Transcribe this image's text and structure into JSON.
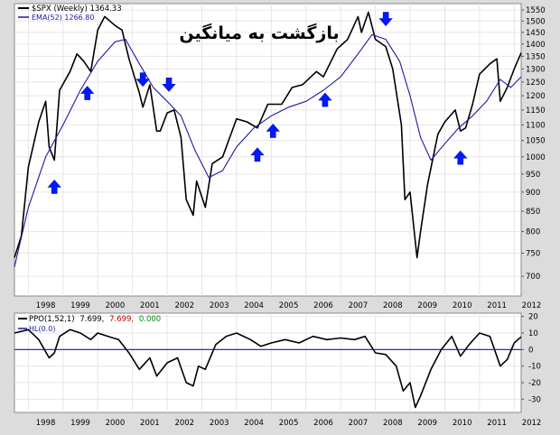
{
  "chart_data": [
    {
      "type": "line",
      "legend": [
        {
          "label": "$SPX (Weekly) 1364.33",
          "color": "#000000"
        },
        {
          "label": "EMA(52) 1266.80",
          "color": "#1a1aa0"
        }
      ],
      "annotation": "بازگشت به میانگین",
      "y_scale": "log",
      "ylim": [
        660,
        1580
      ],
      "y_ticks": [
        "700",
        "750",
        "800",
        "850",
        "900",
        "950",
        "1000",
        "1050",
        "1100",
        "1150",
        "1200",
        "1250",
        "1300",
        "1350",
        "1400",
        "1450",
        "1500",
        "1550"
      ],
      "x_ticks": [
        "1998",
        "1999",
        "2000",
        "2001",
        "2002",
        "2003",
        "2004",
        "2005",
        "2006",
        "2007",
        "2008",
        "2009",
        "2010",
        "2011",
        "2012"
      ],
      "xlim": [
        1997.6,
        2012.2
      ],
      "series": [
        {
          "name": "$SPX (Weekly)",
          "x": [
            1997.6,
            1997.8,
            1998.0,
            1998.3,
            1998.5,
            1998.6,
            1998.75,
            1998.9,
            1999.2,
            1999.4,
            1999.6,
            1999.8,
            2000.0,
            2000.2,
            2000.5,
            2000.7,
            2000.9,
            2001.2,
            2001.3,
            2001.5,
            2001.7,
            2001.8,
            2002.0,
            2002.2,
            2002.4,
            2002.55,
            2002.75,
            2002.85,
            2003.1,
            2003.3,
            2003.6,
            2004.0,
            2004.3,
            2004.6,
            2004.9,
            2005.3,
            2005.6,
            2005.9,
            2006.3,
            2006.5,
            2006.9,
            2007.2,
            2007.5,
            2007.6,
            2007.8,
            2008.0,
            2008.3,
            2008.5,
            2008.75,
            2008.85,
            2009.0,
            2009.2,
            2009.3,
            2009.5,
            2009.8,
            2010.0,
            2010.3,
            2010.45,
            2010.6,
            2010.8,
            2011.0,
            2011.3,
            2011.5,
            2011.6,
            2011.8,
            2012.0,
            2012.2
          ],
          "values": [
            740,
            790,
            970,
            1110,
            1180,
            1030,
            990,
            1220,
            1290,
            1360,
            1330,
            1290,
            1460,
            1520,
            1480,
            1460,
            1340,
            1210,
            1160,
            1240,
            1080,
            1080,
            1140,
            1150,
            1060,
            880,
            840,
            930,
            860,
            980,
            1000,
            1120,
            1110,
            1090,
            1170,
            1170,
            1230,
            1240,
            1290,
            1270,
            1380,
            1420,
            1520,
            1450,
            1540,
            1420,
            1390,
            1300,
            1100,
            880,
            900,
            740,
            800,
            920,
            1070,
            1110,
            1150,
            1080,
            1090,
            1170,
            1280,
            1320,
            1340,
            1180,
            1230,
            1300,
            1364
          ]
        },
        {
          "name": "EMA(52)",
          "x": [
            1997.6,
            1998.0,
            1998.5,
            1999.0,
            1999.5,
            2000.0,
            2000.5,
            2000.8,
            2001.2,
            2001.6,
            2002.0,
            2002.4,
            2002.8,
            2003.2,
            2003.6,
            2004.0,
            2004.5,
            2005.0,
            2005.5,
            2006.0,
            2006.5,
            2007.0,
            2007.5,
            2007.9,
            2008.3,
            2008.7,
            2009.0,
            2009.3,
            2009.6,
            2010.0,
            2010.4,
            2010.8,
            2011.2,
            2011.6,
            2011.9,
            2012.2
          ],
          "values": [
            720,
            860,
            1000,
            1100,
            1220,
            1330,
            1410,
            1420,
            1320,
            1230,
            1180,
            1130,
            1020,
            940,
            960,
            1030,
            1090,
            1130,
            1160,
            1180,
            1220,
            1270,
            1360,
            1440,
            1420,
            1330,
            1200,
            1060,
            990,
            1040,
            1090,
            1130,
            1180,
            1260,
            1230,
            1270
          ]
        }
      ]
    },
    {
      "type": "line",
      "legend": [
        {
          "label": "PPO(1,52,1) 7.699, 7.699, 0.000",
          "color": "#000000"
        },
        {
          "label": "HL(0.0)",
          "color": "#1a1aa0"
        }
      ],
      "legend_parts": [
        "PPO(1,52,1)",
        "7.699,",
        "7.699,",
        "0.000"
      ],
      "legend_part_colors": [
        "#000000",
        "#000000",
        "#c00000",
        "#009000"
      ],
      "ylim": [
        -38,
        22
      ],
      "y_ticks": [
        "20",
        "10",
        "0",
        "-10",
        "-20",
        "-30"
      ],
      "x_ticks": [
        "1998",
        "1999",
        "2000",
        "2001",
        "2002",
        "2003",
        "2004",
        "2005",
        "2006",
        "2007",
        "2008",
        "2009",
        "2010",
        "2011",
        "2012"
      ],
      "xlim": [
        1997.6,
        2012.2
      ],
      "hline": 0,
      "series": [
        {
          "name": "PPO(1,52,1)",
          "x": [
            1997.6,
            1998.0,
            1998.3,
            1998.6,
            1998.75,
            1998.9,
            1999.2,
            1999.5,
            1999.8,
            2000.0,
            2000.3,
            2000.6,
            2000.9,
            2001.2,
            2001.5,
            2001.7,
            2002.0,
            2002.3,
            2002.55,
            2002.75,
            2002.9,
            2003.1,
            2003.4,
            2003.7,
            2004.0,
            2004.4,
            2004.7,
            2005.0,
            2005.4,
            2005.8,
            2006.2,
            2006.6,
            2007.0,
            2007.4,
            2007.7,
            2008.0,
            2008.3,
            2008.6,
            2008.8,
            2009.0,
            2009.15,
            2009.3,
            2009.6,
            2009.9,
            2010.2,
            2010.45,
            2010.7,
            2011.0,
            2011.3,
            2011.6,
            2011.8,
            2012.0,
            2012.2
          ],
          "values": [
            10,
            12,
            6,
            -5,
            -2,
            8,
            12,
            10,
            6,
            10,
            8,
            6,
            -2,
            -12,
            -5,
            -16,
            -8,
            -5,
            -20,
            -22,
            -10,
            -12,
            3,
            8,
            10,
            6,
            2,
            4,
            6,
            4,
            8,
            6,
            7,
            6,
            8,
            -2,
            -3,
            -10,
            -25,
            -20,
            -35,
            -28,
            -12,
            0,
            8,
            -4,
            3,
            10,
            8,
            -10,
            -6,
            4,
            7.7
          ]
        }
      ]
    }
  ]
}
